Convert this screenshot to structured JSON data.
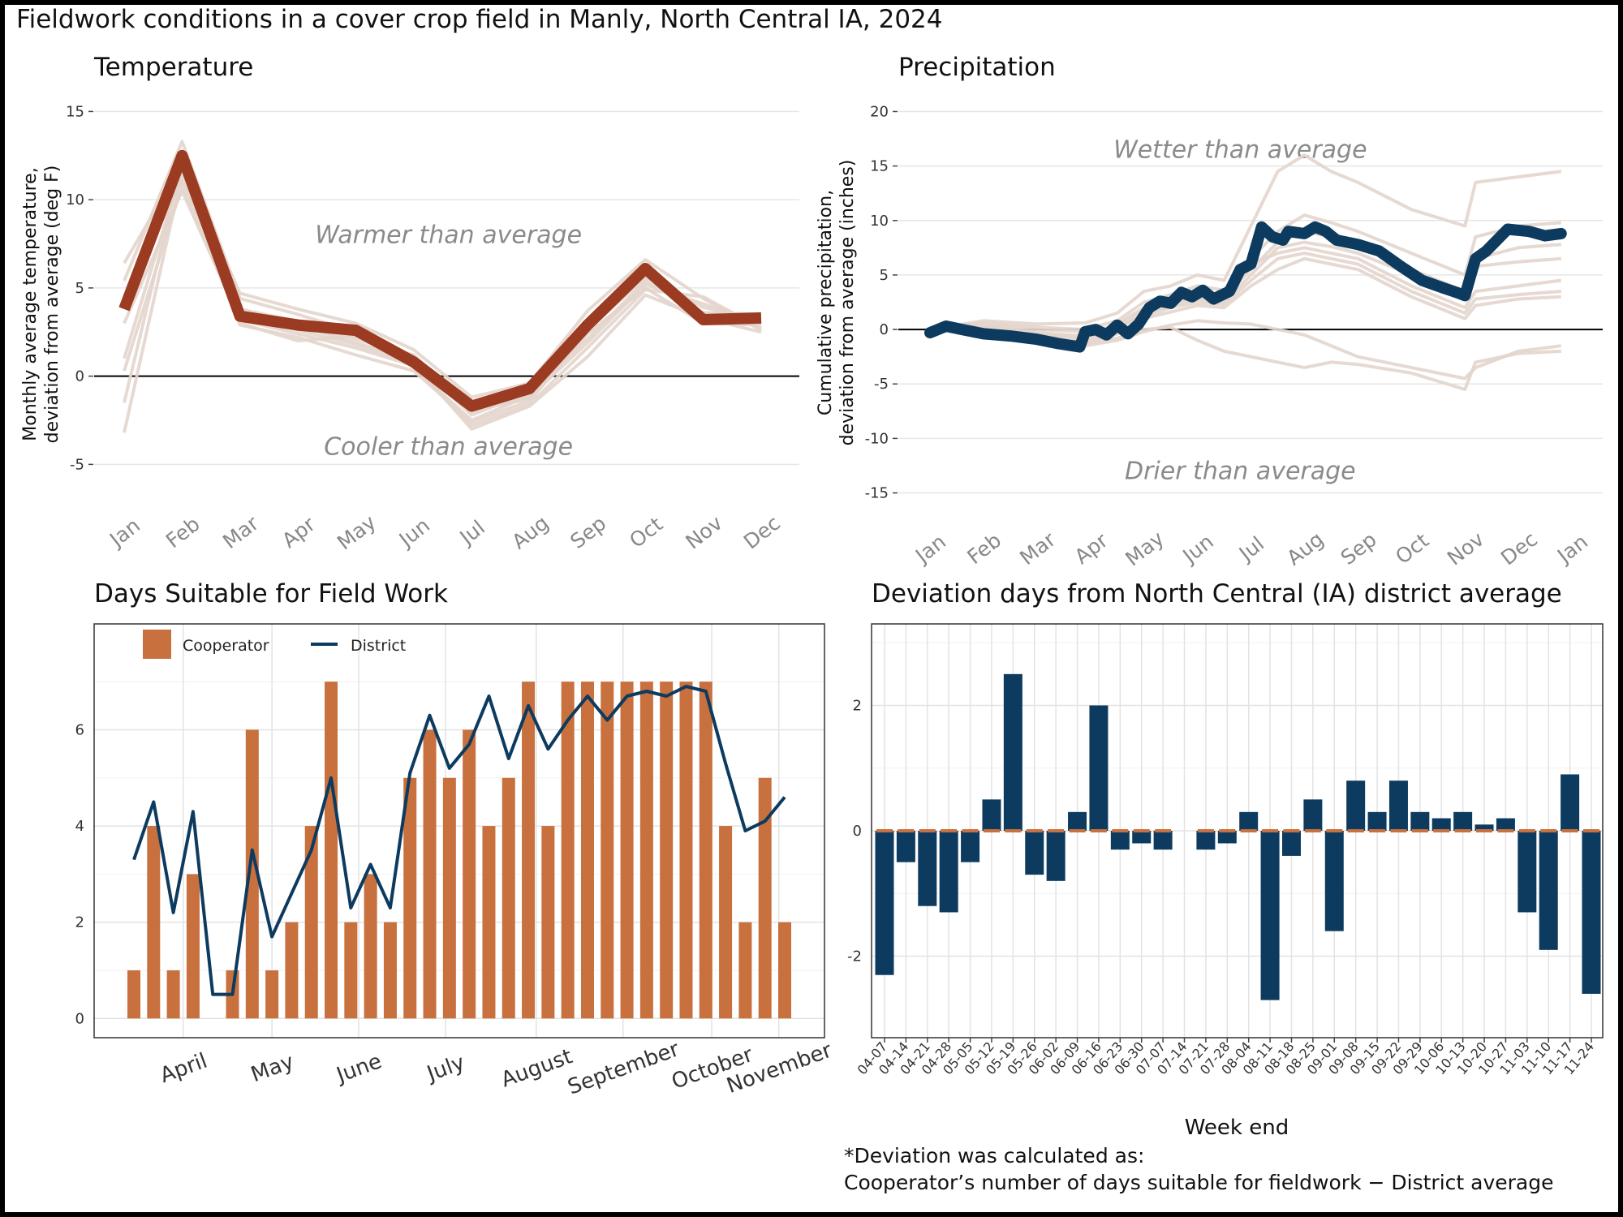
{
  "title": "Fieldwork conditions in a cover crop field in Manly, North Central IA, 2024",
  "footnote": {
    "line1": "*Deviation was calculated as:",
    "line2": "Cooperator’s number of days suitable for fieldwork − District average"
  },
  "colors": {
    "temperature_main": "#9b3b22",
    "background_lines": "#e3d5cc",
    "precip_main": "#0d3b5f",
    "cooperator": "#c8703e",
    "district": "#0d3b5f",
    "deviation_bar": "#0d3b5f",
    "district_dash": "#c8703e",
    "annotation_text": "#8a8a8a"
  },
  "chart_data": [
    {
      "id": "temperature",
      "type": "line",
      "title": "Temperature",
      "ylabel_lines": [
        "Monthly average temperature,",
        "deviation from average (deg F)"
      ],
      "xlabel": "",
      "categories": [
        "Jan",
        "Feb",
        "Mar",
        "Apr",
        "May",
        "Jun",
        "Jul",
        "Aug",
        "Sep",
        "Oct",
        "Nov",
        "Dec"
      ],
      "ylim": [
        -6.5,
        15.8
      ],
      "yticks": [
        -5,
        0,
        5,
        10,
        15
      ],
      "series": [
        {
          "values": [
            3.8,
            12.5,
            3.4,
            2.9,
            2.6,
            0.8,
            -1.7,
            -0.7,
            2.9,
            6.1,
            3.2,
            3.3
          ]
        }
      ],
      "background_series": [
        [
          6.4,
          12.0,
          4.7,
          3.8,
          3.0,
          1.5,
          -1.2,
          -0.4,
          3.7,
          6.6,
          4.4,
          2.6
        ],
        [
          5.4,
          13.3,
          4.4,
          3.5,
          2.5,
          0.5,
          -2.5,
          -1.1,
          3.1,
          6.0,
          3.4,
          3.1
        ],
        [
          4.5,
          11.1,
          3.8,
          3.1,
          2.1,
          1.2,
          -1.9,
          -1.3,
          2.6,
          5.6,
          3.9,
          3.2
        ],
        [
          3.0,
          10.5,
          3.2,
          2.4,
          1.6,
          0.6,
          -2.8,
          -1.6,
          1.6,
          4.9,
          4.5,
          2.7
        ],
        [
          1.0,
          11.8,
          3.1,
          2.9,
          1.9,
          0.9,
          -2.2,
          -0.9,
          2.1,
          5.4,
          3.6,
          3.5
        ],
        [
          -1.5,
          12.2,
          2.9,
          2.2,
          1.2,
          0.3,
          -2.6,
          -1.4,
          2.4,
          5.0,
          3.0,
          2.9
        ],
        [
          -3.2,
          11.5,
          3.6,
          2.6,
          1.8,
          0.7,
          -3.0,
          -1.7,
          1.1,
          4.6,
          3.3,
          2.5
        ],
        [
          0.3,
          10.8,
          3.0,
          2.0,
          2.3,
          1.0,
          -2.0,
          -1.2,
          1.9,
          5.2,
          4.1,
          3.0
        ]
      ],
      "annotations": [
        {
          "text": "Warmer than average",
          "x": 5.6,
          "y": 8.0
        },
        {
          "text": "Cooler than average",
          "x": 5.6,
          "y": -4.0
        }
      ]
    },
    {
      "id": "precipitation",
      "type": "line",
      "title": "Precipitation",
      "ylabel_lines": [
        "Cumulative precipitation,",
        "deviation from average (inches)"
      ],
      "xlabel": "",
      "categories": [
        "Jan",
        "Feb",
        "Mar",
        "Apr",
        "May",
        "Jun",
        "Jul",
        "Aug",
        "Sep",
        "Oct",
        "Nov",
        "Dec",
        "Jan"
      ],
      "ylim": [
        -16.3,
        21.3
      ],
      "yticks": [
        -15,
        -10,
        -5,
        0,
        5,
        10,
        15,
        20
      ],
      "series": [
        {
          "x": [
            0.0,
            0.3,
            0.6,
            1.0,
            1.5,
            2.0,
            2.4,
            2.8,
            2.9,
            3.1,
            3.3,
            3.5,
            3.7,
            3.9,
            4.1,
            4.3,
            4.5,
            4.7,
            4.9,
            5.1,
            5.3,
            5.6,
            5.8,
            6.0,
            6.2,
            6.4,
            6.6,
            6.7,
            7.0,
            7.2,
            7.4,
            7.6,
            8.0,
            8.4,
            8.8,
            9.2,
            9.6,
            9.9,
            10.0,
            10.2,
            10.4,
            10.8,
            11.2,
            11.5,
            11.8
          ],
          "y": [
            -0.3,
            0.3,
            0.0,
            -0.4,
            -0.6,
            -0.9,
            -1.3,
            -1.6,
            -0.2,
            0.0,
            -0.5,
            0.4,
            -0.4,
            0.5,
            2.0,
            2.6,
            2.4,
            3.4,
            3.0,
            3.6,
            2.8,
            3.5,
            5.5,
            6.0,
            9.4,
            8.5,
            8.2,
            9.0,
            8.8,
            9.4,
            9.0,
            8.2,
            7.8,
            7.2,
            5.8,
            4.5,
            3.8,
            3.3,
            3.1,
            6.5,
            7.2,
            9.2,
            9.0,
            8.6,
            8.8
          ]
        }
      ],
      "background_series": [
        {
          "x": [
            0.0,
            1.0,
            2.0,
            2.9,
            3.5,
            4.0,
            4.5,
            5.0,
            5.5,
            6.0,
            6.5,
            7.0,
            7.5,
            8.0,
            9.0,
            10.0,
            10.2,
            11.0,
            11.8
          ],
          "y": [
            0.0,
            0.8,
            0.5,
            0.6,
            1.5,
            3.5,
            4.0,
            5.0,
            4.5,
            9.5,
            14.5,
            16.0,
            14.5,
            13.5,
            11.0,
            9.5,
            13.5,
            14.0,
            14.5
          ]
        },
        {
          "x": [
            0.0,
            1.0,
            2.0,
            2.9,
            3.5,
            4.0,
            4.5,
            5.0,
            5.5,
            6.0,
            6.5,
            7.0,
            7.5,
            8.0,
            9.0,
            10.0,
            10.2,
            11.0,
            11.8
          ],
          "y": [
            0.0,
            0.6,
            0.2,
            0.0,
            0.8,
            2.5,
            3.2,
            4.0,
            3.6,
            6.5,
            9.0,
            10.5,
            9.8,
            9.0,
            7.0,
            5.0,
            8.5,
            9.5,
            9.8
          ]
        },
        {
          "x": [
            0.0,
            1.0,
            2.0,
            2.9,
            3.5,
            4.0,
            4.5,
            5.0,
            5.5,
            6.0,
            6.5,
            7.0,
            7.5,
            8.0,
            9.0,
            10.0,
            10.2,
            11.0,
            11.8
          ],
          "y": [
            0.0,
            0.4,
            -0.3,
            -0.6,
            0.5,
            2.0,
            2.8,
            3.5,
            3.0,
            5.5,
            8.0,
            9.0,
            8.5,
            8.0,
            5.5,
            3.5,
            6.5,
            7.5,
            7.8
          ]
        },
        {
          "x": [
            0.0,
            1.0,
            2.0,
            2.9,
            3.5,
            4.0,
            4.5,
            5.0,
            5.5,
            6.0,
            6.5,
            7.0,
            7.5,
            8.0,
            9.0,
            10.0,
            10.2,
            11.0,
            11.8
          ],
          "y": [
            0.0,
            0.2,
            -0.5,
            -1.0,
            0.0,
            1.5,
            2.2,
            2.8,
            2.5,
            5.0,
            7.5,
            8.0,
            7.6,
            7.0,
            5.0,
            2.8,
            5.8,
            6.2,
            6.5
          ]
        },
        {
          "x": [
            0.0,
            1.0,
            2.0,
            2.9,
            3.5,
            4.0,
            4.5,
            5.0,
            5.5,
            6.0,
            6.5,
            7.0,
            7.5,
            8.0,
            9.0,
            10.0,
            10.2,
            11.0,
            11.8
          ],
          "y": [
            0.0,
            0.5,
            0.0,
            -0.2,
            0.3,
            1.8,
            2.5,
            3.0,
            2.8,
            6.0,
            7.0,
            7.5,
            7.0,
            6.5,
            4.0,
            2.0,
            3.5,
            4.0,
            4.5
          ]
        },
        {
          "x": [
            0.0,
            1.0,
            2.0,
            2.9,
            3.5,
            4.0,
            4.5,
            5.0,
            5.5,
            6.0,
            6.5,
            7.0,
            7.5,
            8.0,
            9.0,
            10.0,
            10.2,
            11.0,
            11.8
          ],
          "y": [
            0.0,
            0.3,
            -0.4,
            -0.8,
            0.2,
            1.2,
            2.0,
            2.5,
            2.3,
            4.5,
            6.5,
            7.0,
            6.5,
            6.0,
            3.5,
            1.5,
            2.8,
            3.2,
            3.5
          ]
        },
        {
          "x": [
            0.0,
            1.0,
            2.0,
            2.9,
            3.5,
            4.0,
            4.5,
            5.0,
            5.5,
            6.0,
            6.5,
            7.0,
            7.5,
            8.0,
            9.0,
            10.0,
            10.2,
            11.0,
            11.8
          ],
          "y": [
            0.0,
            0.1,
            -0.6,
            -1.2,
            -0.4,
            1.0,
            1.6,
            2.2,
            2.0,
            4.0,
            5.5,
            6.5,
            6.0,
            5.5,
            3.0,
            1.0,
            2.2,
            2.8,
            3.0
          ]
        },
        {
          "x": [
            0.0,
            1.0,
            2.0,
            2.9,
            3.5,
            4.0,
            4.5,
            5.0,
            5.5,
            6.0,
            6.5,
            7.0,
            7.5,
            8.0,
            9.0,
            10.0,
            10.2,
            11.0,
            11.8
          ],
          "y": [
            0.0,
            -0.2,
            -0.8,
            -1.5,
            -1.0,
            -0.2,
            0.4,
            0.8,
            0.6,
            0.5,
            0.0,
            -0.5,
            -1.5,
            -2.5,
            -3.5,
            -4.5,
            -3.5,
            -2.0,
            -1.5
          ]
        },
        {
          "x": [
            0.0,
            1.0,
            2.0,
            2.9,
            3.5,
            4.0,
            4.5,
            5.0,
            5.5,
            6.0,
            6.5,
            7.0,
            7.5,
            8.0,
            9.0,
            10.0,
            10.2,
            11.0,
            11.8
          ],
          "y": [
            0.0,
            0.0,
            -0.7,
            -1.3,
            -0.8,
            0.0,
            0.2,
            -1.0,
            -2.0,
            -2.5,
            -3.0,
            -3.5,
            -3.0,
            -3.2,
            -4.0,
            -5.5,
            -3.0,
            -2.2,
            -2.0
          ]
        }
      ],
      "annotations": [
        {
          "text": "Wetter than average",
          "x": 5.8,
          "y": 16.5
        },
        {
          "text": "Drier than average",
          "x": 5.8,
          "y": -13.0
        }
      ]
    },
    {
      "id": "days_suitable",
      "type": "bar",
      "title": "Days Suitable for Field Work",
      "xlabel": "",
      "ylabel": "",
      "month_ticks": [
        {
          "label": "April",
          "week": 2.5
        },
        {
          "label": "May",
          "week": 7.0
        },
        {
          "label": "June",
          "week": 11.4
        },
        {
          "label": "July",
          "week": 15.8
        },
        {
          "label": "August",
          "week": 20.4
        },
        {
          "label": "September",
          "week": 24.8
        },
        {
          "label": "October",
          "week": 29.3
        },
        {
          "label": "November",
          "week": 32.7
        }
      ],
      "ylim": [
        -0.4,
        8.2
      ],
      "yticks": [
        0,
        2,
        4,
        6
      ],
      "legend": {
        "position": "top-left",
        "entries": [
          "Cooperator",
          "District"
        ]
      },
      "cooperator": [
        1,
        4,
        1,
        3,
        0,
        1,
        6,
        1,
        2,
        4,
        7,
        2,
        3,
        2,
        5,
        6,
        5,
        6,
        4,
        5,
        7,
        4,
        7,
        7,
        7,
        7,
        7,
        7,
        7,
        7,
        4,
        2,
        5,
        2
      ],
      "district": [
        3.3,
        4.5,
        2.2,
        4.3,
        0.5,
        0.5,
        3.5,
        1.7,
        2.6,
        3.5,
        5.0,
        2.3,
        3.2,
        2.3,
        5.1,
        6.3,
        5.2,
        5.7,
        6.7,
        5.4,
        6.5,
        5.6,
        6.2,
        6.7,
        6.2,
        6.7,
        6.8,
        6.7,
        6.9,
        6.8,
        5.3,
        3.9,
        4.1,
        4.6
      ]
    },
    {
      "id": "deviation",
      "type": "bar",
      "title": "Deviation days from North Central (IA) district average",
      "xlabel": "Week end",
      "ylabel": "",
      "categories": [
        "04-07",
        "04-14",
        "04-21",
        "04-28",
        "05-05",
        "05-12",
        "05-19",
        "05-26",
        "06-02",
        "06-09",
        "06-16",
        "06-23",
        "06-30",
        "07-07",
        "07-14",
        "07-21",
        "07-28",
        "08-04",
        "08-11",
        "08-18",
        "08-25",
        "09-01",
        "09-08",
        "09-15",
        "09-22",
        "09-29",
        "10-06",
        "10-13",
        "10-20",
        "10-27",
        "11-03",
        "11-10",
        "11-17",
        "11-24"
      ],
      "values": [
        -2.3,
        -0.5,
        -1.2,
        -1.3,
        -0.5,
        0.5,
        2.5,
        -0.7,
        -0.8,
        0.3,
        2.0,
        -0.3,
        -0.2,
        -0.3,
        0,
        -0.3,
        -0.2,
        0.3,
        -2.7,
        -0.4,
        0.5,
        -1.6,
        0.8,
        0.3,
        0.8,
        0.3,
        0.2,
        0.3,
        0.1,
        0.2,
        -1.3,
        -1.9,
        0.9,
        -2.6
      ],
      "district_marker": [
        true,
        true,
        true,
        true,
        true,
        true,
        true,
        true,
        true,
        true,
        true,
        true,
        true,
        true,
        false,
        true,
        true,
        true,
        true,
        true,
        true,
        true,
        true,
        true,
        true,
        true,
        true,
        true,
        true,
        true,
        true,
        true,
        true,
        true
      ],
      "ylim": [
        -3.3,
        3.3
      ],
      "yticks": [
        -2,
        0,
        2
      ]
    }
  ]
}
